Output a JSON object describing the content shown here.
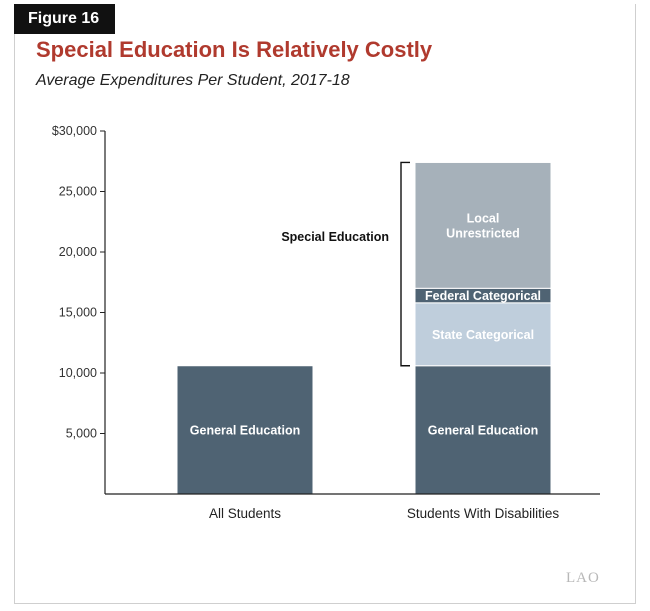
{
  "figure_label": "Figure 16",
  "logo": "LAO",
  "chart_data": {
    "type": "bar",
    "stacked": true,
    "title": "Special Education Is Relatively Costly",
    "subtitle": "Average Expenditures Per Student, 2017-18",
    "xlabel": "",
    "ylabel": "",
    "ylim": [
      0,
      30000
    ],
    "yticks": [
      "5,000",
      "10,000",
      "15,000",
      "20,000",
      "25,000",
      "$30,000"
    ],
    "ytick_values": [
      5000,
      10000,
      15000,
      20000,
      25000,
      30000
    ],
    "grid": false,
    "categories": [
      "All Students",
      "Students With Disabilities"
    ],
    "series": [
      {
        "name": "General Education",
        "values": [
          10600,
          10600
        ],
        "color": "#4f6373",
        "label_color": "#ffffff"
      },
      {
        "name": "State Categorical",
        "values": [
          0,
          5200
        ],
        "color": "#bfcedc",
        "label_color": "#ffffff"
      },
      {
        "name": "Federal Categorical",
        "values": [
          0,
          1200
        ],
        "color": "#4f6373",
        "label_color": "#ffffff"
      },
      {
        "name": "Local Unrestricted",
        "values": [
          0,
          10400
        ],
        "color": "#a6b1ba",
        "label_color": "#ffffff"
      }
    ],
    "segment_labels": [
      {
        "category": 0,
        "series": 0,
        "lines": [
          "General Education"
        ]
      },
      {
        "category": 1,
        "series": 0,
        "lines": [
          "General Education"
        ]
      },
      {
        "category": 1,
        "series": 1,
        "lines": [
          "State Categorical"
        ]
      },
      {
        "category": 1,
        "series": 2,
        "lines": [
          "Federal Categorical"
        ]
      },
      {
        "category": 1,
        "series": 3,
        "lines": [
          "Local",
          "Unrestricted"
        ]
      }
    ],
    "annotations": [
      {
        "text": "Special Education",
        "category": 1,
        "from": 10600,
        "to": 27400
      }
    ]
  }
}
